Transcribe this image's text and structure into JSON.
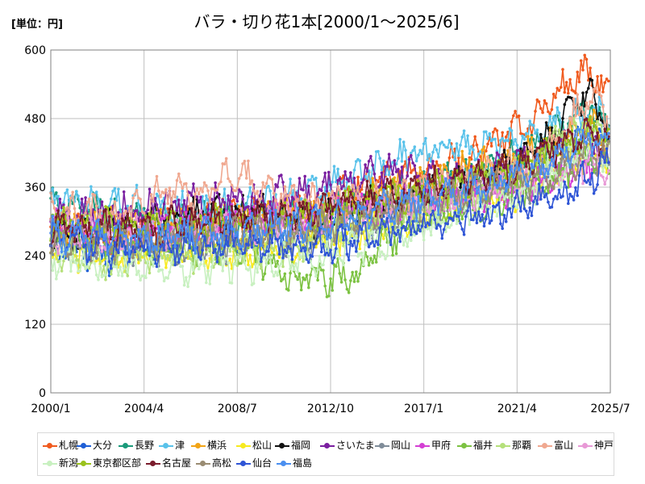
{
  "chart_data": {
    "type": "line",
    "title": "バラ・切り花1本[2000/1～2025/6]",
    "unit_label": "[単位：円]",
    "ylim": [
      0,
      600
    ],
    "yticks": [
      0,
      120,
      240,
      360,
      480,
      600
    ],
    "xrange": [
      "2000-01",
      "2025-07"
    ],
    "xtick_labels": [
      "2000/1",
      "2004/4",
      "2008/7",
      "2012/10",
      "2017/1",
      "2021/4",
      "2025/7"
    ],
    "grid": true,
    "legend_position": "bottom",
    "series": [
      {
        "name": "札幌",
        "color": "#f05a1e",
        "keys": [
          [
            2000.0,
            300
          ],
          [
            2003.0,
            270
          ],
          [
            2006.0,
            295
          ],
          [
            2009.0,
            305
          ],
          [
            2012.0,
            320
          ],
          [
            2014.0,
            360
          ],
          [
            2016.0,
            380
          ],
          [
            2018.0,
            395
          ],
          [
            2020.0,
            430
          ],
          [
            2022.0,
            480
          ],
          [
            2023.5,
            540
          ],
          [
            2024.5,
            560
          ],
          [
            2025.4,
            520
          ]
        ]
      },
      {
        "name": "大分",
        "color": "#1f5fd6",
        "keys": [
          [
            2000.0,
            255
          ],
          [
            2003.0,
            240
          ],
          [
            2006.0,
            260
          ],
          [
            2009.0,
            270
          ],
          [
            2012.0,
            280
          ],
          [
            2014.0,
            300
          ],
          [
            2016.0,
            320
          ],
          [
            2018.0,
            340
          ],
          [
            2020.0,
            360
          ],
          [
            2022.0,
            390
          ],
          [
            2023.5,
            430
          ],
          [
            2024.5,
            470
          ],
          [
            2025.4,
            450
          ]
        ]
      },
      {
        "name": "長野",
        "color": "#1a9a7a",
        "keys": [
          [
            2000.0,
            330
          ],
          [
            2003.0,
            310
          ],
          [
            2006.0,
            300
          ],
          [
            2009.0,
            300
          ],
          [
            2012.0,
            310
          ],
          [
            2014.0,
            330
          ],
          [
            2016.0,
            350
          ],
          [
            2018.0,
            370
          ],
          [
            2020.0,
            390
          ],
          [
            2022.0,
            420
          ],
          [
            2023.5,
            470
          ],
          [
            2024.5,
            500
          ],
          [
            2025.4,
            460
          ]
        ]
      },
      {
        "name": "津",
        "color": "#59c2ea",
        "keys": [
          [
            2000.0,
            340
          ],
          [
            2003.0,
            330
          ],
          [
            2006.0,
            320
          ],
          [
            2009.0,
            330
          ],
          [
            2012.0,
            350
          ],
          [
            2014.0,
            380
          ],
          [
            2016.0,
            410
          ],
          [
            2017.5,
            430
          ],
          [
            2019.5,
            430
          ],
          [
            2021.0,
            445
          ],
          [
            2023.0,
            470
          ],
          [
            2024.5,
            490
          ],
          [
            2025.4,
            480
          ]
        ]
      },
      {
        "name": "横浜",
        "color": "#f2a416",
        "keys": [
          [
            2000.0,
            300
          ],
          [
            2003.0,
            290
          ],
          [
            2006.0,
            300
          ],
          [
            2009.0,
            305
          ],
          [
            2012.0,
            315
          ],
          [
            2014.0,
            340
          ],
          [
            2016.0,
            360
          ],
          [
            2018.0,
            380
          ],
          [
            2020.0,
            400
          ],
          [
            2022.0,
            420
          ],
          [
            2023.5,
            450
          ],
          [
            2024.5,
            470
          ],
          [
            2025.4,
            440
          ]
        ]
      },
      {
        "name": "松山",
        "color": "#f7ea1e",
        "keys": [
          [
            2000.0,
            250
          ],
          [
            2003.0,
            240
          ],
          [
            2006.0,
            245
          ],
          [
            2009.0,
            250
          ],
          [
            2012.0,
            260
          ],
          [
            2014.0,
            280
          ],
          [
            2016.0,
            300
          ],
          [
            2018.0,
            320
          ],
          [
            2020.0,
            340
          ],
          [
            2022.0,
            360
          ],
          [
            2023.5,
            400
          ],
          [
            2024.5,
            420
          ],
          [
            2025.4,
            410
          ]
        ]
      },
      {
        "name": "福岡",
        "color": "#111111",
        "keys": [
          [
            2000.0,
            270
          ],
          [
            2003.0,
            290
          ],
          [
            2006.0,
            310
          ],
          [
            2009.0,
            320
          ],
          [
            2012.0,
            300
          ],
          [
            2014.0,
            320
          ],
          [
            2016.0,
            340
          ],
          [
            2018.0,
            360
          ],
          [
            2020.0,
            380
          ],
          [
            2022.0,
            420
          ],
          [
            2023.5,
            480
          ],
          [
            2024.5,
            530
          ],
          [
            2025.4,
            450
          ]
        ]
      },
      {
        "name": "さいたま",
        "color": "#7a1fa0",
        "keys": [
          [
            2000.0,
            310
          ],
          [
            2003.0,
            320
          ],
          [
            2006.0,
            330
          ],
          [
            2009.0,
            340
          ],
          [
            2012.0,
            350
          ],
          [
            2014.0,
            380
          ],
          [
            2016.0,
            390
          ],
          [
            2018.0,
            380
          ],
          [
            2020.0,
            390
          ],
          [
            2022.0,
            410
          ],
          [
            2023.5,
            440
          ],
          [
            2024.5,
            450
          ],
          [
            2025.4,
            420
          ]
        ]
      },
      {
        "name": "岡山",
        "color": "#7f8c99",
        "keys": [
          [
            2000.0,
            260
          ],
          [
            2003.0,
            250
          ],
          [
            2006.0,
            250
          ],
          [
            2009.0,
            260
          ],
          [
            2012.0,
            270
          ],
          [
            2014.0,
            290
          ],
          [
            2016.0,
            310
          ],
          [
            2018.0,
            330
          ],
          [
            2020.0,
            350
          ],
          [
            2022.0,
            370
          ],
          [
            2023.5,
            400
          ],
          [
            2024.5,
            410
          ],
          [
            2025.4,
            400
          ]
        ]
      },
      {
        "name": "甲府",
        "color": "#d43fd4",
        "keys": [
          [
            2000.0,
            290
          ],
          [
            2003.0,
            280
          ],
          [
            2006.0,
            290
          ],
          [
            2009.0,
            300
          ],
          [
            2012.0,
            310
          ],
          [
            2014.0,
            320
          ],
          [
            2016.0,
            330
          ],
          [
            2018.0,
            340
          ],
          [
            2020.0,
            350
          ],
          [
            2022.0,
            360
          ],
          [
            2023.5,
            380
          ],
          [
            2024.5,
            400
          ],
          [
            2025.4,
            390
          ]
        ]
      },
      {
        "name": "福井",
        "color": "#7cc242",
        "keys": [
          [
            2000.0,
            280
          ],
          [
            2003.0,
            260
          ],
          [
            2006.0,
            255
          ],
          [
            2009.0,
            250
          ],
          [
            2010.5,
            205
          ],
          [
            2012.5,
            200
          ],
          [
            2014.0,
            205
          ],
          [
            2015.0,
            260
          ],
          [
            2017.0,
            300
          ],
          [
            2019.0,
            320
          ],
          [
            2021.0,
            350
          ],
          [
            2023.0,
            380
          ],
          [
            2024.5,
            420
          ],
          [
            2025.4,
            400
          ]
        ]
      },
      {
        "name": "那覇",
        "color": "#b5e07a",
        "keys": [
          [
            2000.0,
            240
          ],
          [
            2003.0,
            230
          ],
          [
            2006.0,
            240
          ],
          [
            2009.0,
            250
          ],
          [
            2012.0,
            260
          ],
          [
            2014.0,
            280
          ],
          [
            2016.0,
            300
          ],
          [
            2018.0,
            330
          ],
          [
            2020.0,
            360
          ],
          [
            2022.0,
            400
          ],
          [
            2023.5,
            450
          ],
          [
            2024.5,
            470
          ],
          [
            2025.4,
            440
          ]
        ]
      },
      {
        "name": "富山",
        "color": "#f0a890",
        "keys": [
          [
            2000.0,
            320
          ],
          [
            2003.0,
            310
          ],
          [
            2005.5,
            360
          ],
          [
            2006.5,
            340
          ],
          [
            2008.5,
            390
          ],
          [
            2010.0,
            350
          ],
          [
            2012.0,
            330
          ],
          [
            2014.0,
            340
          ],
          [
            2016.0,
            350
          ],
          [
            2018.0,
            360
          ],
          [
            2020.0,
            380
          ],
          [
            2022.0,
            410
          ],
          [
            2023.5,
            460
          ],
          [
            2024.5,
            520
          ],
          [
            2025.4,
            480
          ]
        ]
      },
      {
        "name": "神戸",
        "color": "#e899d6",
        "keys": [
          [
            2000.0,
            280
          ],
          [
            2003.0,
            275
          ],
          [
            2006.0,
            285
          ],
          [
            2009.0,
            295
          ],
          [
            2012.0,
            305
          ],
          [
            2014.0,
            320
          ],
          [
            2016.0,
            335
          ],
          [
            2018.0,
            345
          ],
          [
            2020.0,
            355
          ],
          [
            2022.0,
            370
          ],
          [
            2023.5,
            390
          ],
          [
            2024.5,
            400
          ],
          [
            2025.4,
            390
          ]
        ]
      },
      {
        "name": "新潟",
        "color": "#c8f0c0",
        "keys": [
          [
            2000.0,
            230
          ],
          [
            2003.0,
            220
          ],
          [
            2006.0,
            220
          ],
          [
            2009.0,
            225
          ],
          [
            2012.0,
            235
          ],
          [
            2014.0,
            255
          ],
          [
            2016.0,
            275
          ],
          [
            2018.0,
            300
          ],
          [
            2020.0,
            330
          ],
          [
            2022.0,
            360
          ],
          [
            2023.5,
            400
          ],
          [
            2024.5,
            430
          ],
          [
            2025.4,
            420
          ]
        ]
      },
      {
        "name": "東京都区部",
        "color": "#9ac21c",
        "keys": [
          [
            2000.0,
            300
          ],
          [
            2003.0,
            290
          ],
          [
            2006.0,
            295
          ],
          [
            2009.0,
            300
          ],
          [
            2012.0,
            310
          ],
          [
            2014.0,
            330
          ],
          [
            2016.0,
            345
          ],
          [
            2018.0,
            360
          ],
          [
            2020.0,
            380
          ],
          [
            2022.0,
            400
          ],
          [
            2023.5,
            430
          ],
          [
            2024.5,
            450
          ],
          [
            2025.4,
            440
          ]
        ]
      },
      {
        "name": "名古屋",
        "color": "#7a1c2c",
        "keys": [
          [
            2000.0,
            290
          ],
          [
            2003.0,
            285
          ],
          [
            2006.0,
            295
          ],
          [
            2009.0,
            305
          ],
          [
            2012.0,
            315
          ],
          [
            2014.0,
            335
          ],
          [
            2016.0,
            350
          ],
          [
            2018.0,
            365
          ],
          [
            2020.0,
            385
          ],
          [
            2022.0,
            410
          ],
          [
            2023.5,
            440
          ],
          [
            2024.5,
            460
          ],
          [
            2025.4,
            440
          ]
        ]
      },
      {
        "name": "高松",
        "color": "#9a8c72",
        "keys": [
          [
            2000.0,
            270
          ],
          [
            2003.0,
            265
          ],
          [
            2006.0,
            270
          ],
          [
            2009.0,
            280
          ],
          [
            2012.0,
            290
          ],
          [
            2014.0,
            310
          ],
          [
            2016.0,
            325
          ],
          [
            2018.0,
            340
          ],
          [
            2020.0,
            355
          ],
          [
            2022.0,
            375
          ],
          [
            2023.5,
            400
          ],
          [
            2024.5,
            420
          ],
          [
            2025.4,
            410
          ]
        ]
      },
      {
        "name": "仙台",
        "color": "#2f55d6",
        "keys": [
          [
            2000.0,
            270
          ],
          [
            2003.0,
            250
          ],
          [
            2006.0,
            255
          ],
          [
            2009.0,
            260
          ],
          [
            2012.0,
            250
          ],
          [
            2014.0,
            265
          ],
          [
            2016.0,
            285
          ],
          [
            2018.0,
            300
          ],
          [
            2020.0,
            310
          ],
          [
            2022.0,
            330
          ],
          [
            2023.5,
            350
          ],
          [
            2024.5,
            380
          ],
          [
            2025.4,
            400
          ]
        ]
      },
      {
        "name": "福島",
        "color": "#4a8ff0",
        "keys": [
          [
            2000.0,
            280
          ],
          [
            2003.0,
            270
          ],
          [
            2006.0,
            275
          ],
          [
            2009.0,
            285
          ],
          [
            2012.0,
            295
          ],
          [
            2014.0,
            310
          ],
          [
            2016.0,
            330
          ],
          [
            2018.0,
            345
          ],
          [
            2020.0,
            365
          ],
          [
            2022.0,
            390
          ],
          [
            2023.5,
            420
          ],
          [
            2024.5,
            450
          ],
          [
            2025.4,
            440
          ]
        ]
      }
    ]
  }
}
